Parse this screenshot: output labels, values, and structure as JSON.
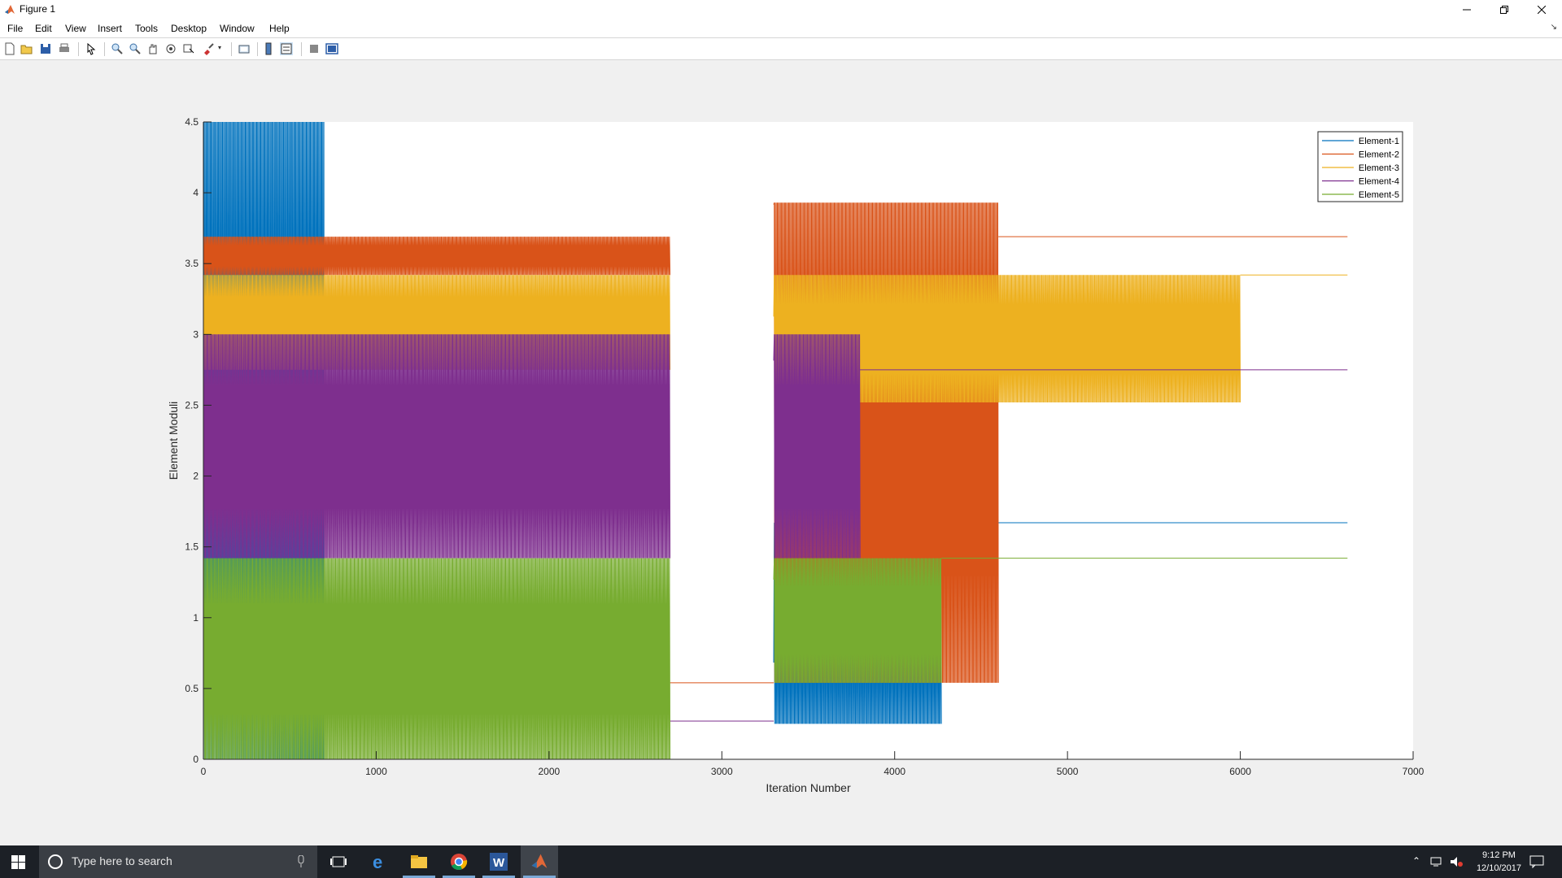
{
  "window": {
    "title": "Figure 1"
  },
  "menu": [
    "File",
    "Edit",
    "View",
    "Insert",
    "Tools",
    "Desktop",
    "Window",
    "Help"
  ],
  "toolbar_icons": [
    "new-figure-icon",
    "open-file-icon",
    "save-icon",
    "print-icon",
    "select-arrow-icon",
    "zoom-in-icon",
    "zoom-out-icon",
    "pan-hand-icon",
    "rotate-3d-icon",
    "data-cursor-icon",
    "brush-icon",
    "link-plot-icon",
    "colorbar-icon",
    "legend-icon",
    "hide-plot-tools-icon",
    "show-plot-tools-icon"
  ],
  "taskbar": {
    "search_placeholder": "Type here to search",
    "time": "9:12 PM",
    "date": "12/10/2017"
  },
  "chart_data": {
    "type": "line",
    "xlabel": "Iteration Number",
    "ylabel": "Element Moduli",
    "xlim": [
      0,
      7000
    ],
    "ylim": [
      0,
      4.5
    ],
    "xticks": [
      0,
      1000,
      2000,
      3000,
      4000,
      5000,
      6000,
      7000
    ],
    "yticks": [
      0,
      0.5,
      1,
      1.5,
      2,
      2.5,
      3,
      3.5,
      4,
      4.5
    ],
    "xtick_labels": [
      "0",
      "1000",
      "2000",
      "3000",
      "4000",
      "5000",
      "6000",
      "7000"
    ],
    "ytick_labels": [
      "0",
      "0.5",
      "1",
      "1.5",
      "2",
      "2.5",
      "3",
      "3.5",
      "4",
      "4.5"
    ],
    "legend_position": "top-right",
    "grid": false,
    "series": [
      {
        "name": "Element-1",
        "color": "#0072bd",
        "final_value": 1.67,
        "segments": [
          {
            "x": [
              0,
              700
            ],
            "range": [
              0,
              4.5
            ]
          },
          {
            "x": [
              2700,
              3300
            ],
            "value": 0
          },
          {
            "x": [
              3300,
              4270
            ],
            "range": [
              0.25,
              1.67
            ]
          },
          {
            "x": [
              4270,
              6620
            ],
            "value": 1.67
          }
        ]
      },
      {
        "name": "Element-2",
        "color": "#d95319",
        "final_value": 3.69,
        "segments": [
          {
            "x": [
              0,
              2700
            ],
            "range": [
              3.42,
              3.69
            ]
          },
          {
            "x": [
              2700,
              3300
            ],
            "value": 0.54
          },
          {
            "x": [
              3300,
              4600
            ],
            "range": [
              0.54,
              3.93
            ]
          },
          {
            "x": [
              4600,
              6620
            ],
            "value": 3.69
          }
        ]
      },
      {
        "name": "Element-3",
        "color": "#edb120",
        "final_value": 3.42,
        "segments": [
          {
            "x": [
              0,
              2700
            ],
            "range": [
              2.75,
              3.42
            ]
          },
          {
            "x": [
              2700,
              3300
            ],
            "value": 0
          },
          {
            "x": [
              3300,
              6000
            ],
            "range": [
              2.52,
              3.42
            ]
          },
          {
            "x": [
              6000,
              6620
            ],
            "value": 3.42
          }
        ]
      },
      {
        "name": "Element-4",
        "color": "#7e2f8e",
        "final_value": 2.75,
        "segments": [
          {
            "x": [
              0,
              2700
            ],
            "range": [
              1.42,
              3.0
            ]
          },
          {
            "x": [
              2700,
              3300
            ],
            "value": 0.27
          },
          {
            "x": [
              3300,
              3800
            ],
            "range": [
              1.42,
              3.0
            ]
          },
          {
            "x": [
              3800,
              6620
            ],
            "value": 2.75
          }
        ]
      },
      {
        "name": "Element-5",
        "color": "#77ac30",
        "final_value": 1.42,
        "segments": [
          {
            "x": [
              0,
              2700
            ],
            "range": [
              0,
              1.42
            ]
          },
          {
            "x": [
              2700,
              3300
            ],
            "value": 0
          },
          {
            "x": [
              3300,
              4270
            ],
            "range": [
              0.54,
              1.42
            ]
          },
          {
            "x": [
              4270,
              6620
            ],
            "value": 1.42
          }
        ]
      }
    ]
  }
}
